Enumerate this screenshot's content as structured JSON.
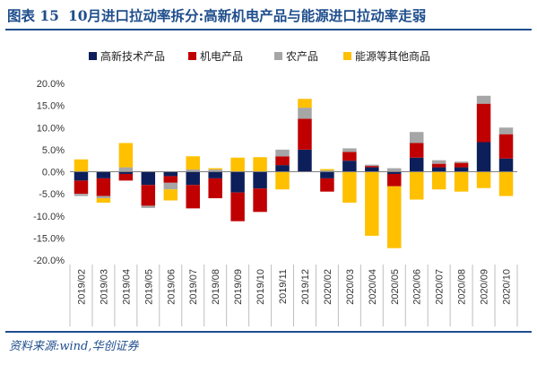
{
  "header": {
    "figure_no": "图表 15",
    "title": "10月进口拉动率拆分:高新机电产品与能源进口拉动率走弱"
  },
  "footer": {
    "source": "资料来源:wind,华创证券"
  },
  "colors": {
    "title": "#1f4e8c",
    "hitech": "#0d1f5a",
    "mech": "#c00000",
    "agri": "#a6a6a6",
    "energy": "#ffc000"
  },
  "chart_data": {
    "type": "bar",
    "stacked": true,
    "categories": [
      "2019/02",
      "2019/03",
      "2019/04",
      "2019/05",
      "2019/06",
      "2019/07",
      "2019/08",
      "2019/09",
      "2019/10",
      "2019/11",
      "2019/12",
      "2020/02",
      "2020/03",
      "2020/04",
      "2020/05",
      "2020/06",
      "2020/07",
      "2020/08",
      "2020/09",
      "2020/10"
    ],
    "series": [
      {
        "name": "高新技术产品",
        "color": "#0d1f5a",
        "values": [
          -2.0,
          -1.5,
          -0.5,
          -3.0,
          -1.0,
          -3.0,
          -1.5,
          -4.7,
          -3.8,
          1.5,
          5.0,
          -1.5,
          2.5,
          1.0,
          -0.5,
          3.2,
          1.0,
          1.0,
          6.7,
          3.0
        ]
      },
      {
        "name": "机电产品",
        "color": "#c00000",
        "values": [
          -3.0,
          -4.0,
          -1.5,
          -4.7,
          -1.5,
          -5.3,
          -4.5,
          -6.5,
          -5.3,
          2.0,
          7.0,
          -3.0,
          2.0,
          0.3,
          -2.8,
          3.3,
          0.8,
          1.0,
          8.7,
          5.5
        ]
      },
      {
        "name": "农产品",
        "color": "#a6a6a6",
        "values": [
          -0.5,
          -0.5,
          1.0,
          -0.5,
          -1.5,
          0.5,
          0.5,
          0.0,
          0.0,
          1.5,
          2.5,
          0.3,
          0.8,
          0.3,
          0.8,
          2.5,
          0.8,
          0.3,
          1.8,
          1.5
        ]
      },
      {
        "name": "能源等其他商品",
        "color": "#ffc000",
        "values": [
          2.8,
          -1.0,
          5.5,
          0.0,
          -2.5,
          3.0,
          0.3,
          3.2,
          3.3,
          -4.0,
          2.0,
          0.3,
          -7.0,
          -14.5,
          -14.0,
          -6.3,
          -4.0,
          -4.5,
          -3.7,
          -5.5
        ]
      }
    ],
    "ylim": [
      -20,
      20
    ],
    "yticks": [
      "-20.0%",
      "-15.0%",
      "-10.0%",
      "-5.0%",
      "0.0%",
      "5.0%",
      "10.0%",
      "15.0%",
      "20.0%"
    ],
    "legend": {
      "position": "top"
    },
    "grid": false,
    "xlabel": "",
    "ylabel": ""
  }
}
